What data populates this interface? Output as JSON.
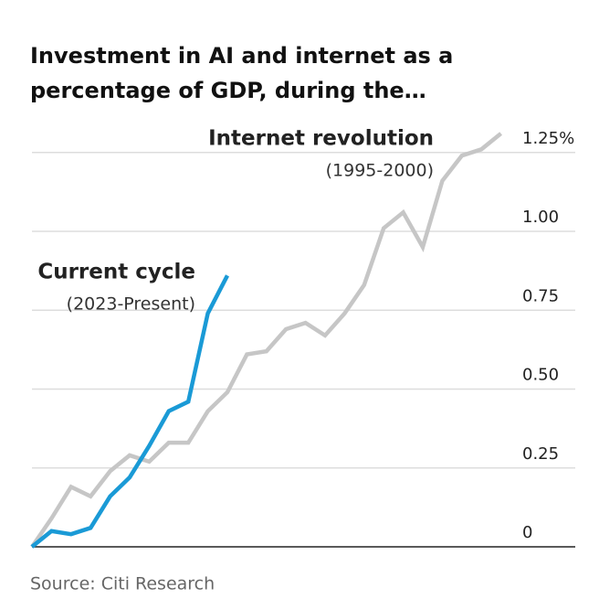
{
  "chart_data": {
    "type": "line",
    "title": "Investment in AI and internet as a percentage of GDP, during the…",
    "title_lines": [
      "Investment in AI and internet as a",
      "percentage of GDP, during the…"
    ],
    "source": "Source: Citi Research",
    "categories": [
      null,
      null,
      null,
      null,
      null,
      null,
      null,
      null,
      null,
      null,
      null,
      null,
      null,
      null,
      null,
      null,
      null,
      null,
      null,
      null,
      null,
      null,
      null,
      null,
      null
    ],
    "series": [
      {
        "name": "Internet revolution",
        "period": "(1995-2000)",
        "color": "#c6c6c6",
        "values": [
          0,
          0.09,
          0.19,
          0.16,
          0.24,
          0.29,
          0.27,
          0.33,
          0.33,
          0.43,
          0.49,
          0.61,
          0.62,
          0.69,
          0.71,
          0.67,
          0.74,
          0.83,
          1.01,
          1.06,
          0.95,
          1.16,
          1.24,
          1.26,
          1.31
        ]
      },
      {
        "name": "Current cycle",
        "period": "(2023-Present)",
        "color": "#1a9ad6",
        "values": [
          0,
          0.05,
          0.04,
          0.06,
          0.16,
          0.22,
          0.32,
          0.43,
          0.46,
          0.74,
          0.86,
          null,
          null,
          null,
          null,
          null,
          null,
          null,
          null,
          null,
          null,
          null,
          null,
          null,
          null
        ]
      }
    ],
    "ylim": [
      0,
      1.35
    ],
    "yticks": [
      0,
      0.25,
      {
        "value": 0.5,
        "label": "0.50"
      },
      0.75,
      {
        "value": 1,
        "label": "1.00"
      },
      {
        "value": 1.25,
        "label": "1.25%"
      }
    ],
    "grid": true
  }
}
